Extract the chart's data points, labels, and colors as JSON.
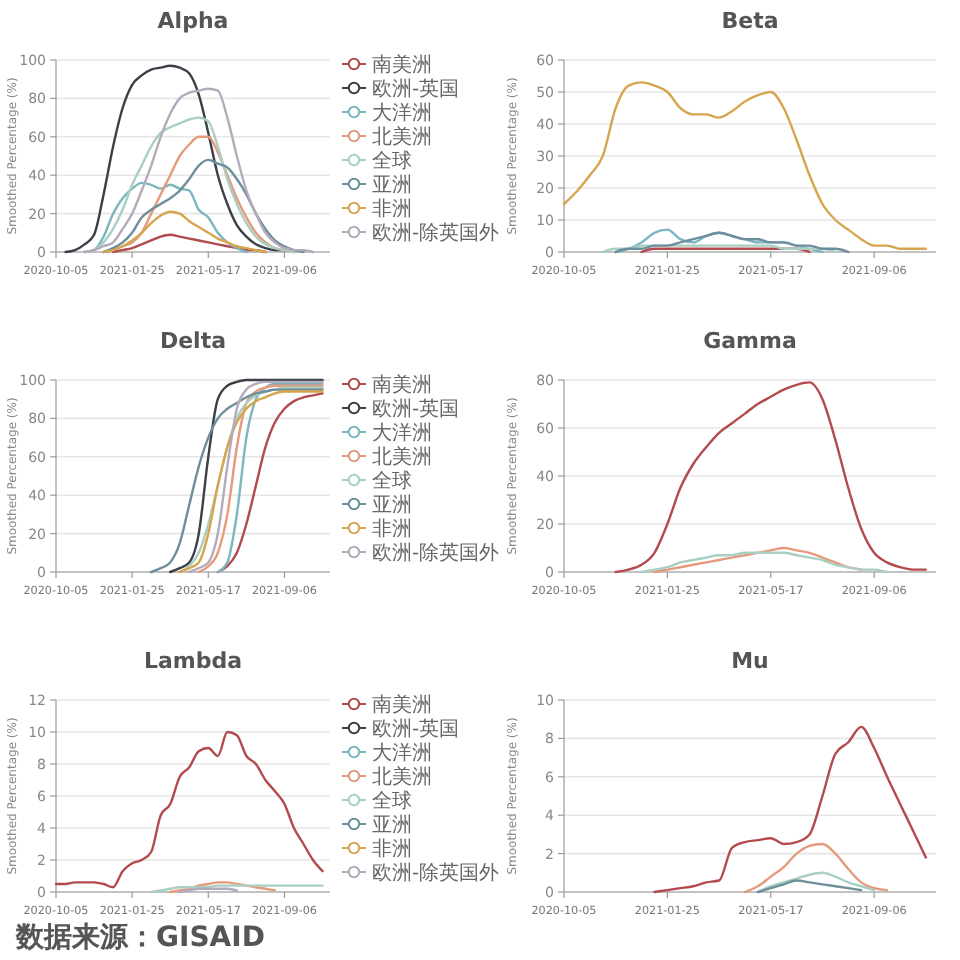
{
  "chart_data": [
    {
      "type": "line",
      "title": "Alpha",
      "ylabel": "Smoothed Percentage (%)",
      "x": [
        "2020-10-19",
        "2020-11-02",
        "2020-11-16",
        "2020-11-30",
        "2020-12-14",
        "2020-12-28",
        "2021-01-11",
        "2021-01-25",
        "2021-02-08",
        "2021-02-22",
        "2021-03-08",
        "2021-03-22",
        "2021-04-05",
        "2021-04-19",
        "2021-05-03",
        "2021-05-17",
        "2021-05-31",
        "2021-06-14",
        "2021-06-28",
        "2021-07-12",
        "2021-07-26",
        "2021-08-09",
        "2021-08-23",
        "2021-09-06",
        "2021-09-20",
        "2021-10-04",
        "2021-10-18"
      ],
      "xlim": [
        "2020-10-05",
        "2021-11-12"
      ],
      "xticks": [
        "2020-10-05",
        "2021-01-25",
        "2021-05-17",
        "2021-09-06"
      ],
      "ylim": [
        0,
        100
      ],
      "yticks": [
        0,
        20,
        40,
        60,
        80,
        100
      ],
      "grid": "y",
      "legend": "right",
      "series": [
        {
          "name": "南美洲",
          "color": "#b24a4e",
          "values": [
            null,
            null,
            null,
            null,
            null,
            0,
            1,
            2,
            4,
            6,
            8,
            9,
            8,
            7,
            6,
            5,
            4,
            3,
            2,
            1,
            1,
            0,
            null,
            null,
            null,
            null,
            null
          ]
        },
        {
          "name": "欧洲-英国",
          "color": "#3b3f48",
          "values": [
            0,
            1,
            4,
            9,
            30,
            55,
            75,
            87,
            92,
            95,
            96,
            97,
            96,
            93,
            82,
            62,
            40,
            25,
            14,
            8,
            4,
            2,
            1,
            1,
            0,
            null,
            null
          ]
        },
        {
          "name": "大洋洲",
          "color": "#7cb7bf",
          "values": [
            null,
            null,
            0,
            1,
            8,
            20,
            28,
            33,
            36,
            35,
            33,
            35,
            33,
            32,
            22,
            18,
            10,
            5,
            2,
            0,
            null,
            null,
            null,
            null,
            null,
            null,
            null
          ]
        },
        {
          "name": "北美洲",
          "color": "#e69a7c",
          "values": [
            null,
            null,
            null,
            null,
            0,
            1,
            3,
            5,
            10,
            20,
            30,
            40,
            50,
            56,
            60,
            60,
            52,
            40,
            28,
            18,
            10,
            5,
            2,
            1,
            0,
            null,
            null
          ]
        },
        {
          "name": "全球",
          "color": "#a9cfc3",
          "values": [
            null,
            null,
            0,
            1,
            5,
            12,
            22,
            35,
            45,
            55,
            62,
            65,
            67,
            69,
            70,
            68,
            55,
            38,
            25,
            15,
            8,
            4,
            2,
            1,
            0,
            null,
            null
          ]
        },
        {
          "name": "亚洲",
          "color": "#6d8f9c",
          "values": [
            null,
            null,
            null,
            null,
            0,
            2,
            5,
            10,
            18,
            22,
            25,
            28,
            32,
            38,
            45,
            48,
            46,
            44,
            38,
            30,
            20,
            12,
            6,
            3,
            1,
            0,
            null
          ]
        },
        {
          "name": "非洲",
          "color": "#d6a54d",
          "values": [
            null,
            null,
            null,
            null,
            0,
            1,
            3,
            6,
            10,
            15,
            19,
            21,
            20,
            16,
            13,
            10,
            7,
            5,
            3,
            2,
            1,
            0,
            null,
            null,
            null,
            null,
            null
          ]
        },
        {
          "name": "欧洲-除英国外",
          "color": "#b3abbb",
          "values": [
            null,
            null,
            0,
            1,
            3,
            5,
            12,
            20,
            32,
            45,
            60,
            72,
            80,
            83,
            84,
            85,
            84,
            70,
            50,
            32,
            20,
            10,
            5,
            2,
            1,
            1,
            0
          ]
        }
      ]
    },
    {
      "type": "line",
      "title": "Beta",
      "ylabel": "Smoothed Percentage (%)",
      "x": [
        "2020-10-05",
        "2020-10-19",
        "2020-11-02",
        "2020-11-16",
        "2020-11-30",
        "2020-12-14",
        "2020-12-28",
        "2021-01-11",
        "2021-01-25",
        "2021-02-08",
        "2021-02-22",
        "2021-03-08",
        "2021-03-22",
        "2021-04-05",
        "2021-04-19",
        "2021-05-03",
        "2021-05-17",
        "2021-05-31",
        "2021-06-14",
        "2021-06-28",
        "2021-07-12",
        "2021-07-26",
        "2021-08-09",
        "2021-08-23",
        "2021-09-06",
        "2021-09-20",
        "2021-10-04",
        "2021-10-18",
        "2021-11-01"
      ],
      "xlim": [
        "2020-10-05",
        "2021-11-12"
      ],
      "xticks": [
        "2020-10-05",
        "2021-01-25",
        "2021-05-17",
        "2021-09-06"
      ],
      "ylim": [
        0,
        60
      ],
      "yticks": [
        0,
        10,
        20,
        30,
        40,
        50,
        60
      ],
      "grid": "y",
      "series": [
        {
          "color": "#b24a4e",
          "values": [
            null,
            null,
            null,
            null,
            null,
            null,
            0,
            1,
            1,
            1,
            1,
            1,
            1,
            1,
            1,
            1,
            1,
            1,
            1,
            0,
            null,
            null,
            null,
            null,
            null,
            null,
            null,
            null,
            null
          ]
        },
        {
          "color": "#7cb7bf",
          "values": [
            null,
            null,
            null,
            null,
            0,
            1,
            3,
            6,
            7,
            4,
            3,
            5,
            6,
            5,
            4,
            3,
            3,
            3,
            2,
            1,
            0,
            null,
            null,
            null,
            null,
            null,
            null,
            null,
            null
          ]
        },
        {
          "color": "#a9cfc3",
          "values": [
            null,
            null,
            null,
            0,
            1,
            1,
            2,
            2,
            2,
            2,
            2,
            2,
            2,
            2,
            2,
            2,
            2,
            1,
            1,
            1,
            1,
            0,
            null,
            null,
            null,
            null,
            null,
            null,
            null
          ]
        },
        {
          "color": "#6d8f9c",
          "values": [
            null,
            null,
            null,
            null,
            0,
            1,
            1,
            2,
            2,
            3,
            4,
            5,
            6,
            5,
            4,
            4,
            3,
            3,
            2,
            2,
            1,
            1,
            0,
            null,
            null,
            null,
            null,
            null,
            null
          ]
        },
        {
          "color": "#d6a54d",
          "values": [
            15,
            19,
            24,
            30,
            45,
            52,
            53,
            52,
            50,
            45,
            43,
            43,
            42,
            44,
            47,
            49,
            50,
            45,
            35,
            24,
            15,
            10,
            7,
            4,
            2,
            2,
            1,
            1,
            1
          ]
        }
      ]
    },
    {
      "type": "line",
      "title": "Delta",
      "ylabel": "Smoothed Percentage (%)",
      "x": [
        "2021-02-22",
        "2021-03-08",
        "2021-03-22",
        "2021-04-05",
        "2021-04-19",
        "2021-05-03",
        "2021-05-17",
        "2021-05-31",
        "2021-06-14",
        "2021-06-28",
        "2021-07-12",
        "2021-07-26",
        "2021-08-09",
        "2021-08-23",
        "2021-09-06",
        "2021-09-20",
        "2021-10-04",
        "2021-10-18",
        "2021-11-01"
      ],
      "xlim": [
        "2020-10-05",
        "2021-11-12"
      ],
      "xticks": [
        "2020-10-05",
        "2021-01-25",
        "2021-05-17",
        "2021-09-06"
      ],
      "ylim": [
        0,
        100
      ],
      "yticks": [
        0,
        20,
        40,
        60,
        80,
        100
      ],
      "grid": "y",
      "legend": "right",
      "series": [
        {
          "name": "南美洲",
          "color": "#b24a4e",
          "values": [
            null,
            null,
            null,
            null,
            null,
            null,
            null,
            0,
            3,
            10,
            25,
            45,
            65,
            78,
            85,
            89,
            91,
            92,
            93
          ]
        },
        {
          "name": "欧洲-英国",
          "color": "#3b3f48",
          "values": [
            null,
            null,
            0,
            2,
            5,
            20,
            60,
            90,
            97,
            99,
            100,
            100,
            100,
            100,
            100,
            100,
            100,
            100,
            100
          ]
        },
        {
          "name": "大洋洲",
          "color": "#7cb7bf",
          "values": [
            null,
            null,
            null,
            null,
            null,
            null,
            null,
            0,
            5,
            30,
            70,
            90,
            96,
            98,
            98,
            98,
            98,
            98,
            98
          ]
        },
        {
          "name": "北美洲",
          "color": "#e69a7c",
          "values": [
            null,
            null,
            null,
            null,
            null,
            0,
            3,
            10,
            30,
            65,
            88,
            94,
            96,
            97,
            97,
            97,
            97,
            97,
            97
          ]
        },
        {
          "name": "全球",
          "color": "#a9cfc3",
          "values": [
            null,
            null,
            null,
            0,
            3,
            10,
            25,
            45,
            65,
            80,
            88,
            92,
            94,
            95,
            96,
            96,
            96,
            96,
            96
          ]
        },
        {
          "name": "亚洲",
          "color": "#6d8f9c",
          "values": [
            0,
            2,
            5,
            15,
            35,
            55,
            70,
            80,
            85,
            88,
            91,
            93,
            94,
            95,
            95,
            95,
            95,
            95,
            95
          ]
        },
        {
          "name": "非洲",
          "color": "#d6a54d",
          "values": [
            null,
            null,
            null,
            0,
            2,
            5,
            20,
            45,
            65,
            78,
            85,
            89,
            91,
            93,
            94,
            94,
            94,
            94,
            94
          ]
        },
        {
          "name": "欧洲-除英国外",
          "color": "#b3abbb",
          "values": [
            null,
            null,
            null,
            null,
            0,
            2,
            5,
            20,
            55,
            85,
            95,
            98,
            99,
            99,
            99,
            99,
            99,
            99,
            99
          ]
        }
      ]
    },
    {
      "type": "line",
      "title": "Gamma",
      "ylabel": "Smoothed Percentage (%)",
      "x": [
        "2020-11-30",
        "2020-12-14",
        "2020-12-28",
        "2021-01-11",
        "2021-01-25",
        "2021-02-08",
        "2021-02-22",
        "2021-03-08",
        "2021-03-22",
        "2021-04-05",
        "2021-04-19",
        "2021-05-03",
        "2021-05-17",
        "2021-05-31",
        "2021-06-14",
        "2021-06-28",
        "2021-07-12",
        "2021-07-26",
        "2021-08-09",
        "2021-08-23",
        "2021-09-06",
        "2021-09-20",
        "2021-10-04",
        "2021-10-18",
        "2021-11-01"
      ],
      "xlim": [
        "2020-10-05",
        "2021-11-12"
      ],
      "xticks": [
        "2020-10-05",
        "2021-01-25",
        "2021-05-17",
        "2021-09-06"
      ],
      "ylim": [
        0,
        80
      ],
      "yticks": [
        0,
        20,
        40,
        60,
        80
      ],
      "grid": "y",
      "series": [
        {
          "color": "#b24a4e",
          "values": [
            0,
            1,
            3,
            8,
            20,
            35,
            45,
            52,
            58,
            62,
            66,
            70,
            73,
            76,
            78,
            79,
            72,
            55,
            35,
            18,
            8,
            4,
            2,
            1,
            1
          ]
        },
        {
          "color": "#e69a7c",
          "values": [
            null,
            null,
            null,
            0,
            1,
            2,
            3,
            4,
            5,
            6,
            7,
            8,
            9,
            10,
            9,
            8,
            6,
            4,
            2,
            1,
            null,
            null,
            null,
            null,
            null
          ]
        },
        {
          "color": "#a9cfc3",
          "values": [
            null,
            null,
            0,
            1,
            2,
            4,
            5,
            6,
            7,
            7,
            8,
            8,
            8,
            8,
            7,
            6,
            5,
            3,
            2,
            1,
            1,
            0,
            null,
            null,
            null
          ]
        }
      ]
    },
    {
      "type": "line",
      "title": "Lambda",
      "ylabel": "Smoothed Percentage (%)",
      "annotations": [
        "数据来源：GISAID"
      ],
      "x": [
        "2020-10-05",
        "2020-10-19",
        "2020-11-02",
        "2020-11-16",
        "2020-11-30",
        "2020-12-14",
        "2020-12-28",
        "2021-01-11",
        "2021-01-25",
        "2021-02-08",
        "2021-02-22",
        "2021-03-08",
        "2021-03-22",
        "2021-04-05",
        "2021-04-19",
        "2021-05-03",
        "2021-05-17",
        "2021-05-31",
        "2021-06-14",
        "2021-06-28",
        "2021-07-12",
        "2021-07-26",
        "2021-08-09",
        "2021-08-23",
        "2021-09-06",
        "2021-09-20",
        "2021-10-04",
        "2021-10-18",
        "2021-11-01"
      ],
      "xlim": [
        "2020-10-05",
        "2021-11-12"
      ],
      "xticks": [
        "2020-10-05",
        "2021-01-25",
        "2021-05-17",
        "2021-09-06"
      ],
      "ylim": [
        0,
        12
      ],
      "yticks": [
        0,
        2,
        4,
        6,
        8,
        10,
        12
      ],
      "grid": "y",
      "legend": "right",
      "series": [
        {
          "name": "南美洲",
          "color": "#b24a4e",
          "values": [
            0.5,
            0.5,
            0.6,
            0.6,
            0.6,
            0.5,
            0.3,
            1.3,
            1.8,
            2.0,
            2.5,
            4.8,
            5.5,
            7.2,
            7.8,
            8.8,
            9.0,
            8.5,
            10.0,
            9.8,
            8.5,
            8.0,
            7.0,
            6.3,
            5.5,
            4.0,
            3.0,
            2.0,
            1.3
          ]
        },
        {
          "name": "欧洲-英国",
          "color": "#3b3f48",
          "values": [
            null,
            null,
            null,
            null,
            null,
            null,
            null,
            null,
            null,
            null,
            null,
            null,
            null,
            null,
            null,
            null,
            null,
            null,
            null,
            null,
            null,
            null,
            null,
            null,
            null,
            null,
            null,
            null,
            null
          ]
        },
        {
          "name": "大洋洲",
          "color": "#7cb7bf",
          "values": [
            null,
            null,
            null,
            null,
            null,
            null,
            null,
            null,
            null,
            null,
            null,
            null,
            null,
            null,
            null,
            null,
            null,
            null,
            null,
            null,
            null,
            null,
            null,
            null,
            null,
            null,
            null,
            null,
            null
          ]
        },
        {
          "name": "北美洲",
          "color": "#e69a7c",
          "values": [
            null,
            null,
            null,
            null,
            null,
            null,
            null,
            null,
            null,
            null,
            null,
            null,
            0,
            0.1,
            0.2,
            0.4,
            0.5,
            0.6,
            0.6,
            0.5,
            0.4,
            0.3,
            0.2,
            0.1,
            null,
            null,
            null,
            null,
            null
          ]
        },
        {
          "name": "全球",
          "color": "#a9cfc3",
          "values": [
            null,
            null,
            null,
            null,
            null,
            null,
            null,
            null,
            null,
            null,
            0,
            0.1,
            0.2,
            0.3,
            0.3,
            0.3,
            0.3,
            0.4,
            0.4,
            0.4,
            0.4,
            0.4,
            0.4,
            0.4,
            0.4,
            0.4,
            0.4,
            0.4,
            0.4
          ]
        },
        {
          "name": "亚洲",
          "color": "#6d8f9c",
          "values": [
            null,
            null,
            null,
            null,
            null,
            null,
            null,
            null,
            null,
            null,
            null,
            null,
            null,
            null,
            null,
            null,
            null,
            null,
            null,
            null,
            null,
            null,
            null,
            null,
            null,
            null,
            null,
            null,
            null
          ]
        },
        {
          "name": "非洲",
          "color": "#d6a54d",
          "values": [
            null,
            null,
            null,
            null,
            null,
            null,
            null,
            null,
            null,
            null,
            null,
            null,
            null,
            null,
            null,
            null,
            null,
            null,
            null,
            null,
            null,
            null,
            null,
            null,
            null,
            null,
            null,
            null,
            null
          ]
        },
        {
          "name": "欧洲-除英国外",
          "color": "#b3abbb",
          "values": [
            null,
            null,
            null,
            null,
            null,
            null,
            null,
            null,
            null,
            null,
            null,
            null,
            null,
            0,
            0.1,
            0.2,
            0.2,
            0.2,
            0.2,
            0.1,
            null,
            null,
            null,
            null,
            null,
            null,
            null,
            null,
            null
          ]
        }
      ]
    },
    {
      "type": "line",
      "title": "Mu",
      "ylabel": "Smoothed Percentage (%)",
      "x": [
        "2021-01-11",
        "2021-01-25",
        "2021-02-08",
        "2021-02-22",
        "2021-03-08",
        "2021-03-22",
        "2021-04-05",
        "2021-04-19",
        "2021-05-03",
        "2021-05-17",
        "2021-05-31",
        "2021-06-14",
        "2021-06-28",
        "2021-07-12",
        "2021-07-26",
        "2021-08-09",
        "2021-08-23",
        "2021-09-06",
        "2021-09-20",
        "2021-10-04",
        "2021-10-18",
        "2021-11-01"
      ],
      "xlim": [
        "2020-10-05",
        "2021-11-12"
      ],
      "xticks": [
        "2020-10-05",
        "2021-01-25",
        "2021-05-17",
        "2021-09-06"
      ],
      "ylim": [
        0,
        10
      ],
      "yticks": [
        0,
        2,
        4,
        6,
        8,
        10
      ],
      "grid": "y",
      "series": [
        {
          "color": "#b24a4e",
          "values": [
            0,
            0.1,
            0.2,
            0.3,
            0.5,
            0.6,
            2.3,
            2.6,
            2.7,
            2.8,
            2.5,
            2.6,
            3.0,
            5.0,
            7.2,
            7.8,
            8.6,
            7.5,
            6.0,
            4.6,
            3.2,
            1.8
          ]
        },
        {
          "color": "#e69a7c",
          "values": [
            null,
            null,
            null,
            null,
            null,
            null,
            null,
            0,
            0.3,
            0.8,
            1.3,
            2.0,
            2.4,
            2.5,
            2.0,
            1.2,
            0.5,
            0.2,
            0.1,
            null,
            null,
            null
          ]
        },
        {
          "color": "#a9cfc3",
          "values": [
            null,
            null,
            null,
            null,
            null,
            null,
            null,
            null,
            0,
            0.3,
            0.5,
            0.7,
            0.9,
            1.0,
            0.8,
            0.5,
            0.3,
            0.1,
            null,
            null,
            null,
            null
          ]
        },
        {
          "color": "#6d8f9c",
          "values": [
            null,
            null,
            null,
            null,
            null,
            null,
            null,
            null,
            0,
            0.2,
            0.4,
            0.6,
            0.5,
            0.4,
            0.3,
            0.2,
            0.1,
            null,
            null,
            null,
            null,
            null
          ]
        }
      ]
    }
  ]
}
